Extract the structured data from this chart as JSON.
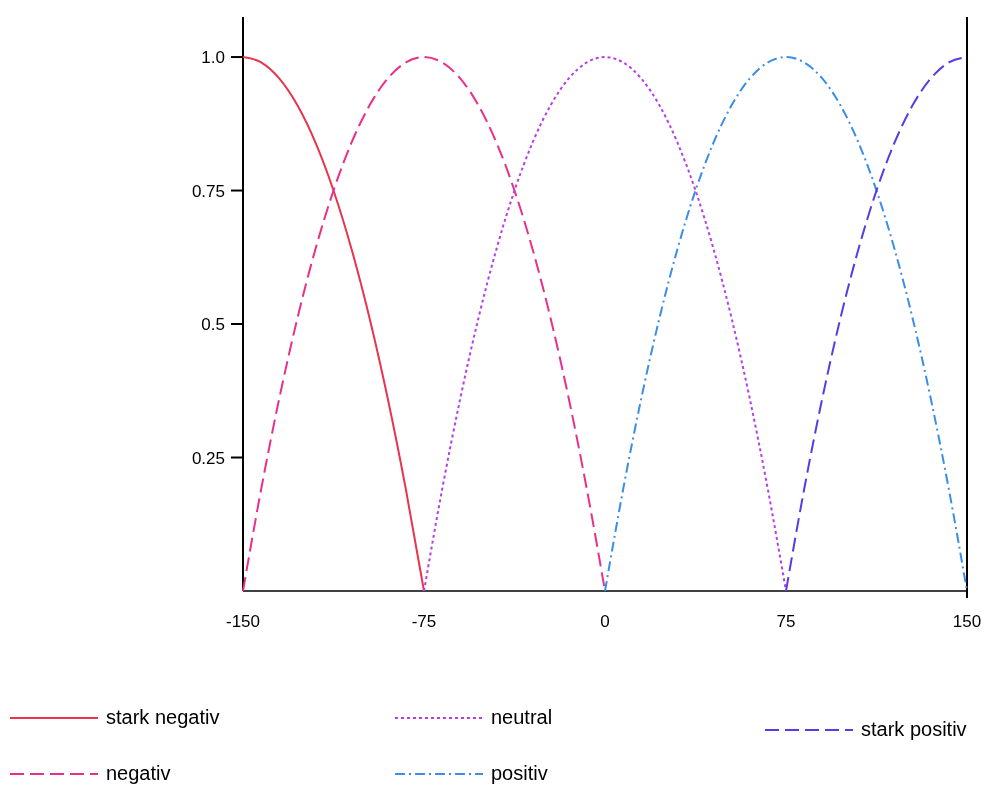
{
  "chart_data": {
    "type": "line",
    "x": [
      -150,
      -142.5,
      -135,
      -127.5,
      -120,
      -112.5,
      -105,
      -97.5,
      -90,
      -82.5,
      -75,
      -67.5,
      -60,
      -52.5,
      -45,
      -37.5,
      -30,
      -22.5,
      -15,
      -7.5,
      0,
      7.5,
      15,
      22.5,
      30,
      37.5,
      45,
      52.5,
      60,
      67.5,
      75,
      82.5,
      90,
      97.5,
      105,
      112.5,
      120,
      127.5,
      135,
      142.5,
      150
    ],
    "series": [
      {
        "name": "stark negativ",
        "color": "#e8344e",
        "line_style": "solid",
        "values": [
          1,
          0.99,
          0.96,
          0.91,
          0.84,
          0.75,
          0.64,
          0.51,
          0.36,
          0.19,
          0,
          null,
          null,
          null,
          null,
          null,
          null,
          null,
          null,
          null,
          null,
          null,
          null,
          null,
          null,
          null,
          null,
          null,
          null,
          null,
          null,
          null,
          null,
          null,
          null,
          null,
          null,
          null,
          null,
          null,
          null
        ]
      },
      {
        "name": "negativ",
        "color": "#e8308a",
        "line_style": "dashed",
        "values": [
          0,
          0.19,
          0.36,
          0.51,
          0.64,
          0.75,
          0.84,
          0.91,
          0.96,
          0.99,
          1,
          0.99,
          0.96,
          0.91,
          0.84,
          0.75,
          0.64,
          0.51,
          0.36,
          0.19,
          0,
          null,
          null,
          null,
          null,
          null,
          null,
          null,
          null,
          null,
          null,
          null,
          null,
          null,
          null,
          null,
          null,
          null,
          null,
          null,
          null
        ]
      },
      {
        "name": "neutral",
        "color": "#b63ee8",
        "line_style": "dotted",
        "values": [
          null,
          null,
          null,
          null,
          null,
          null,
          null,
          null,
          null,
          null,
          0,
          0.19,
          0.36,
          0.51,
          0.64,
          0.75,
          0.84,
          0.91,
          0.96,
          0.99,
          1,
          0.99,
          0.96,
          0.91,
          0.84,
          0.75,
          0.64,
          0.51,
          0.36,
          0.19,
          0,
          null,
          null,
          null,
          null,
          null,
          null,
          null,
          null,
          null,
          null
        ]
      },
      {
        "name": "positiv",
        "color": "#3a8ee8",
        "line_style": "dashdot",
        "values": [
          null,
          null,
          null,
          null,
          null,
          null,
          null,
          null,
          null,
          null,
          null,
          null,
          null,
          null,
          null,
          null,
          null,
          null,
          null,
          null,
          0,
          0.19,
          0.36,
          0.51,
          0.64,
          0.75,
          0.84,
          0.91,
          0.96,
          0.99,
          1,
          0.99,
          0.96,
          0.91,
          0.84,
          0.75,
          0.64,
          0.51,
          0.36,
          0.19,
          0
        ]
      },
      {
        "name": "stark positiv",
        "color": "#5a3ae8",
        "line_style": "dashed",
        "values": [
          null,
          null,
          null,
          null,
          null,
          null,
          null,
          null,
          null,
          null,
          null,
          null,
          null,
          null,
          null,
          null,
          null,
          null,
          null,
          null,
          null,
          null,
          null,
          null,
          null,
          null,
          null,
          null,
          null,
          null,
          0,
          0.19,
          0.36,
          0.51,
          0.64,
          0.75,
          0.84,
          0.91,
          0.96,
          0.99,
          1
        ]
      }
    ],
    "xlim": [
      -150,
      150
    ],
    "xticks": [
      -150,
      -75,
      0,
      75,
      150
    ],
    "ylim": [
      0,
      1.075
    ],
    "yticks": [
      {
        "value": 0.25,
        "label": "0.25"
      },
      {
        "value": 0.5,
        "label": "0.5"
      },
      {
        "value": 0.75,
        "label": "0.75"
      },
      {
        "value": 1,
        "label": "1.0"
      }
    ],
    "grid": false,
    "legend": "bottom",
    "marker": "none"
  }
}
